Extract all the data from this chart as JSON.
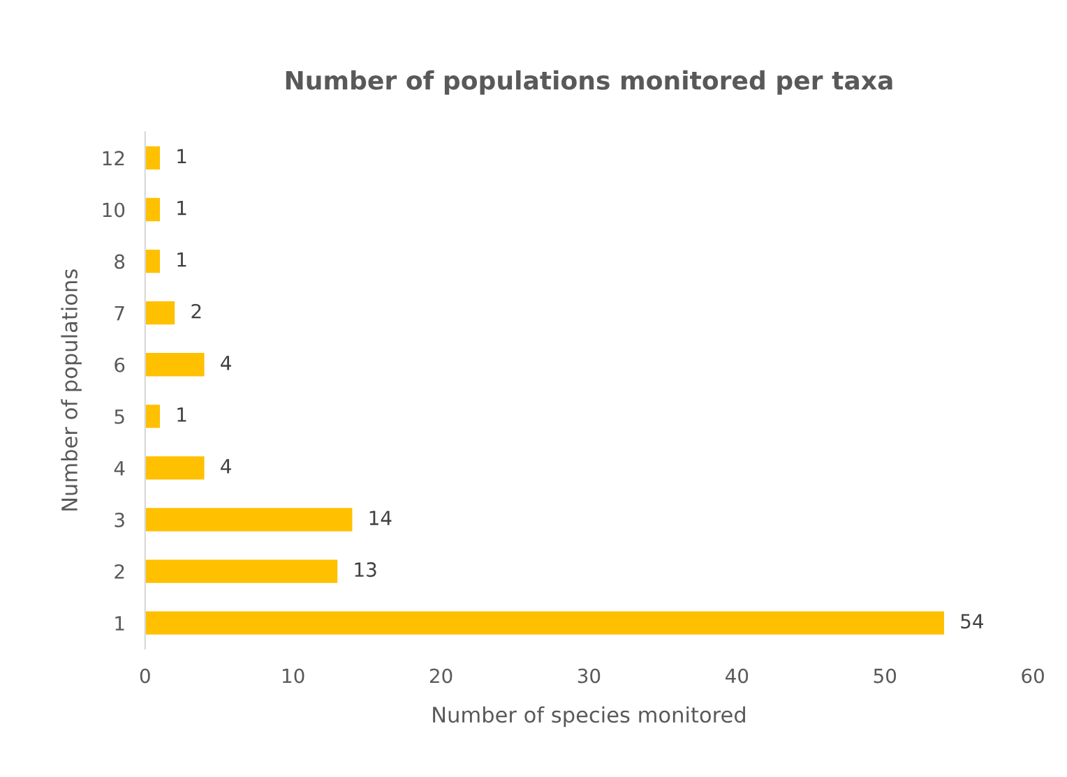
{
  "chart_data": {
    "type": "bar",
    "orientation": "horizontal",
    "title": "Number of populations monitored per taxa",
    "xlabel": "Number of species monitored",
    "ylabel": "Number of populations",
    "categories": [
      "12",
      "10",
      "8",
      "7",
      "6",
      "5",
      "4",
      "3",
      "2",
      "1"
    ],
    "values": [
      1,
      1,
      1,
      2,
      4,
      1,
      4,
      14,
      13,
      54
    ],
    "color": "#ffc000",
    "xlim": [
      0,
      60
    ],
    "xticks": [
      0,
      10,
      20,
      30,
      40,
      50,
      60
    ],
    "grid": false,
    "data_labels": true
  }
}
